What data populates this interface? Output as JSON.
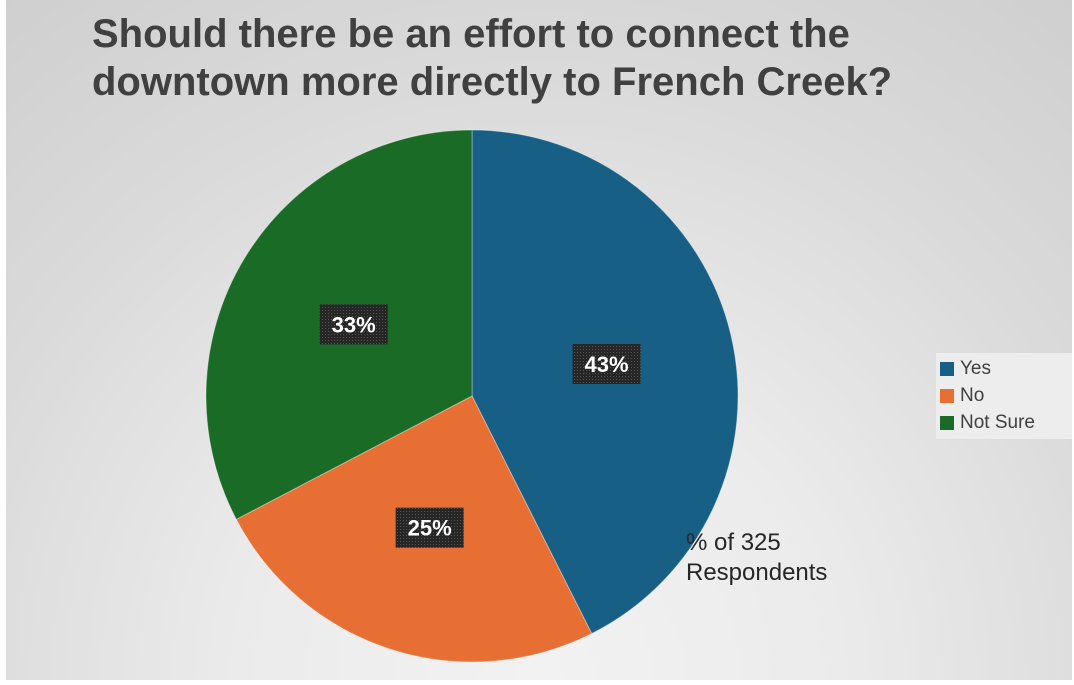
{
  "chart_data": {
    "type": "pie",
    "title_lines": [
      "Should there be an effort to connect the",
      "downtown more directly to French Creek?"
    ],
    "categories": [
      "Yes",
      "No",
      "Not Sure"
    ],
    "values": [
      43,
      25,
      33
    ],
    "data_labels": [
      "43%",
      "25%",
      "33%"
    ],
    "colors": [
      "#175f85",
      "#e76f34",
      "#1a6b26"
    ],
    "legend_position": "right",
    "annotation_lines": [
      "% of 325",
      "Respondents"
    ]
  }
}
